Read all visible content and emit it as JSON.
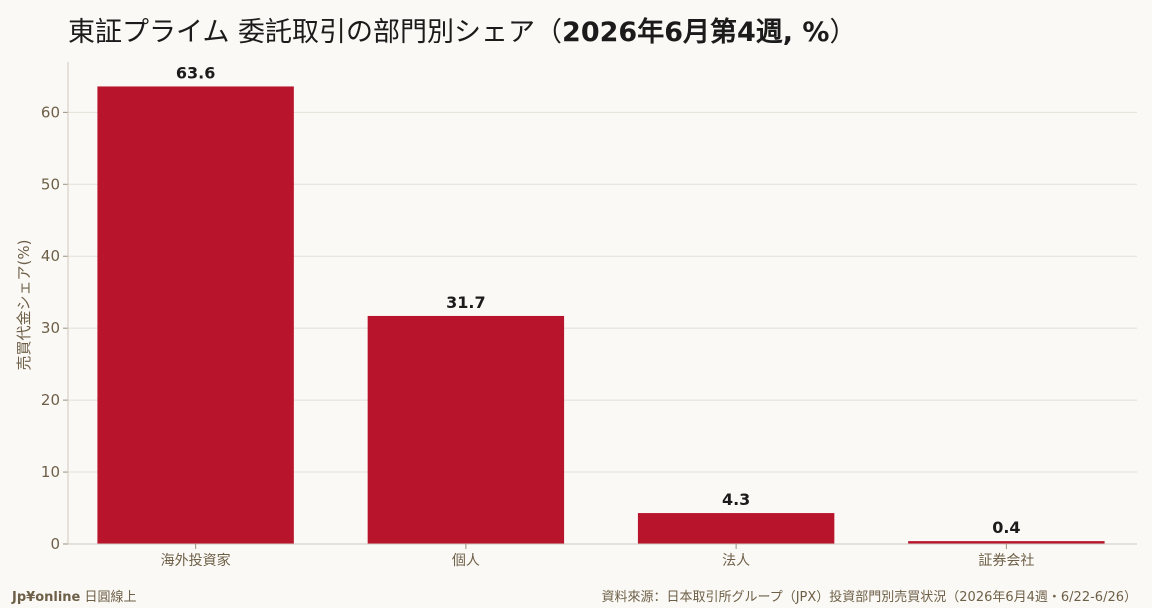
{
  "title": {
    "main": "東証プライム 委託取引の部門別シェア",
    "paren_open": "（",
    "period": "2026年6月第4週, %",
    "paren_close": "）"
  },
  "chart_data": {
    "type": "bar",
    "categories": [
      "海外投資家",
      "個人",
      "法人",
      "証券会社"
    ],
    "values": [
      63.6,
      31.7,
      4.3,
      0.4
    ],
    "value_labels": [
      "63.6",
      "31.7",
      "4.3",
      "0.4"
    ],
    "ylabel": "売買代金シェア(%)",
    "xlabel": "",
    "ylim": [
      0,
      67
    ],
    "yticks": [
      0,
      10,
      20,
      30,
      40,
      50,
      60
    ],
    "grid": true,
    "bar_color": "#b8142c"
  },
  "footer": {
    "brand": "Jp¥online",
    "brand_suffix": "日圓線上",
    "source": "資料來源：日本取引所グループ（JPX）投資部門別売買状況（2026年6月4週・6/22-6/26）"
  }
}
